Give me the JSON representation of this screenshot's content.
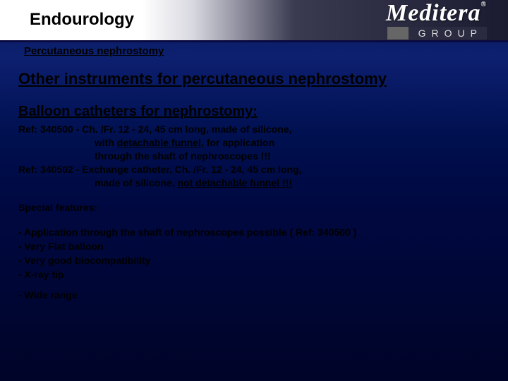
{
  "header": {
    "title": "Endourology",
    "logo_main": "Meditera",
    "logo_reg": "®",
    "logo_sub": "GROUP"
  },
  "subheader": "Percutaneous nephrostomy",
  "content": {
    "heading_main": "Other instruments for percutaneous nephrostomy",
    "heading_sub": "Balloon catheters for nephrostomy:",
    "ref1_a": "Ref: 340500 - Ch. /Fr. 12 - 24, 45 cm long, made of silicone,",
    "ref1_b": "with ",
    "ref1_b_u": "detachable funnel,",
    "ref1_b_after": " for application",
    "ref1_c": "through the shaft of nephroscopes !!!",
    "ref2_a": "Ref: 340502 - Exchange catheter, Ch. /Fr. 12 - 24, 45 cm long,",
    "ref2_b": "made of silicone, ",
    "ref2_b_u": "not detachable funnel !!!",
    "features_title": "Special features:",
    "features": {
      "f1": "- Application through the shaft of nephroscopes possible ( Ref: 340500 )",
      "f2": "- Very Flat balloon",
      "f3": "- Very good biocompatibility",
      "f4": "- X-ray tip",
      "f5": "- Wide range"
    }
  }
}
